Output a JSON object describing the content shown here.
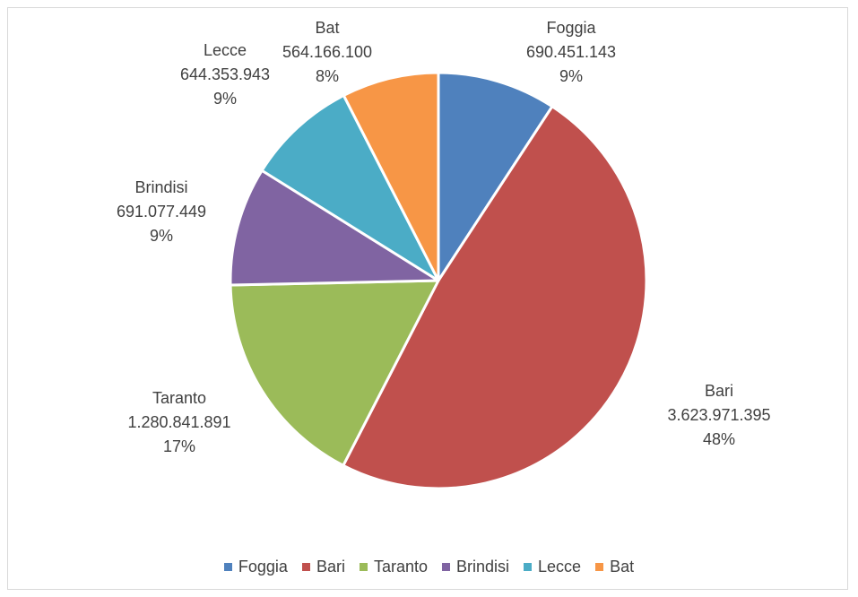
{
  "chart_data": {
    "type": "pie",
    "title": "",
    "slices": [
      {
        "label": "Foggia",
        "value": 690451143,
        "value_text": "690.451.143",
        "percent_text": "9%",
        "color": "#4F81BD"
      },
      {
        "label": "Bari",
        "value": 3623971395,
        "value_text": "3.623.971.395",
        "percent_text": "48%",
        "color": "#C0504D"
      },
      {
        "label": "Taranto",
        "value": 1280841891,
        "value_text": "1.280.841.891",
        "percent_text": "17%",
        "color": "#9BBB59"
      },
      {
        "label": "Brindisi",
        "value": 691077449,
        "value_text": "691.077.449",
        "percent_text": "9%",
        "color": "#8064A2"
      },
      {
        "label": "Lecce",
        "value": 644353943,
        "value_text": "644.353.943",
        "percent_text": "9%",
        "color": "#4BACC6"
      },
      {
        "label": "Bat",
        "value": 564166100,
        "value_text": "564.166.100",
        "percent_text": "8%",
        "color": "#F79646"
      }
    ],
    "legend_position": "bottom",
    "start_angle_deg": 0,
    "direction": "clockwise"
  }
}
